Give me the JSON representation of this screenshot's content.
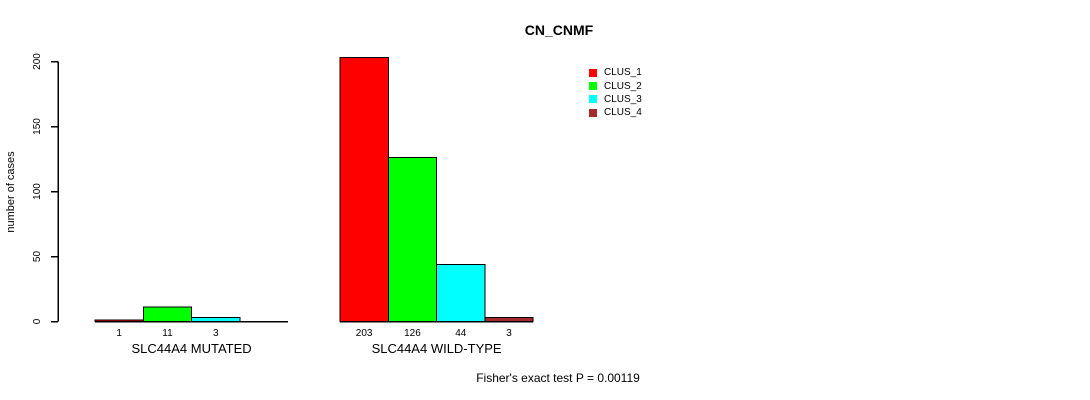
{
  "title": "CN_CNMF",
  "y_axis": {
    "label": "number of cases",
    "ticks": [
      0,
      50,
      100,
      150,
      200
    ]
  },
  "legend": [
    {
      "label": "CLUS_1",
      "color": "#FF0000"
    },
    {
      "label": "CLUS_2",
      "color": "#00FF00"
    },
    {
      "label": "CLUS_3",
      "color": "#00FFFF"
    },
    {
      "label": "CLUS_4",
      "color": "#A52A2A"
    }
  ],
  "footer": "Fisher's exact test P = 0.00119",
  "chart_data": {
    "type": "bar",
    "title": "CN_CNMF",
    "xlabel": "",
    "ylabel": "number of cases",
    "ylim": [
      0,
      200
    ],
    "yticks": [
      0,
      50,
      100,
      150,
      200
    ],
    "grid": false,
    "legend_position": "top-right",
    "categories": [
      "SLC44A4 MUTATED",
      "SLC44A4 WILD-TYPE"
    ],
    "series": [
      {
        "name": "CLUS_1",
        "color": "#FF0000",
        "values": [
          1,
          203
        ]
      },
      {
        "name": "CLUS_2",
        "color": "#00FF00",
        "values": [
          11,
          126
        ]
      },
      {
        "name": "CLUS_3",
        "color": "#00FFFF",
        "values": [
          3,
          44
        ]
      },
      {
        "name": "CLUS_4",
        "color": "#A52A2A",
        "values": [
          null,
          3
        ]
      }
    ],
    "bar_value_labels_visible": true,
    "annotation": "Fisher's exact test P = 0.00119"
  }
}
